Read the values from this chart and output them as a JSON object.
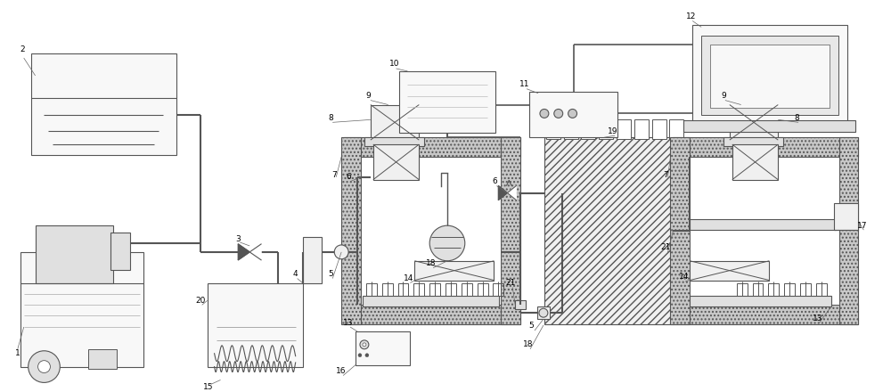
{
  "bg": "#ffffff",
  "lc": "#555555",
  "lw": 0.8,
  "g1": "#f0f0f0",
  "g2": "#e0e0e0",
  "g3": "#c8c8c8",
  "g4": "#f8f8f8",
  "hatch_fc": "#aaaaaa"
}
